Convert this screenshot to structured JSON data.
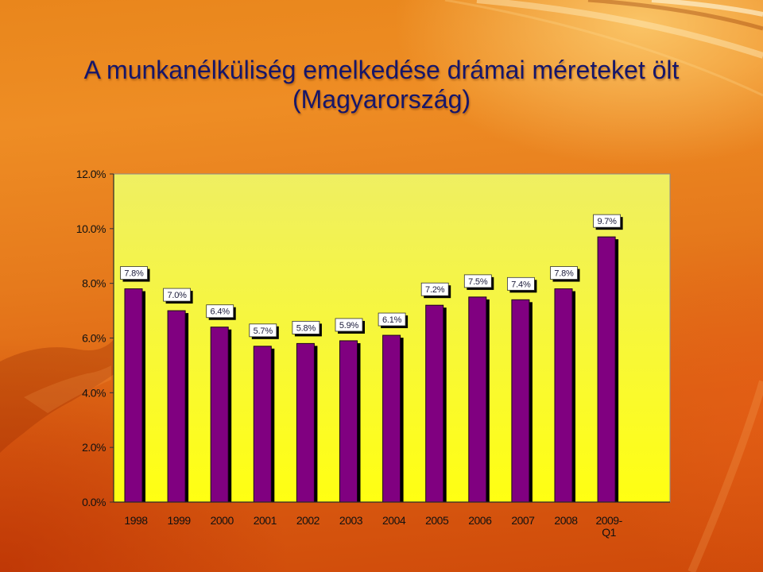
{
  "slide": {
    "title_line1": "A munkanélküliség emelkedése drámai méreteket ölt",
    "title_line2": "(Magyarország)",
    "title_color": "#16166a"
  },
  "chart_data": {
    "type": "bar",
    "categories": [
      "1998",
      "1999",
      "2000",
      "2001",
      "2002",
      "2003",
      "2004",
      "2005",
      "2006",
      "2007",
      "2008",
      "2009-Q1"
    ],
    "values": [
      7.8,
      7.0,
      6.4,
      5.7,
      5.8,
      5.9,
      6.1,
      7.2,
      7.5,
      7.4,
      7.8,
      9.7
    ],
    "data_labels": [
      "7.8%",
      "7.0%",
      "6.4%",
      "5.7%",
      "5.8%",
      "5.9%",
      "6.1%",
      "7.2%",
      "7.5%",
      "7.4%",
      "7.8%",
      "9.7%"
    ],
    "ylim": [
      0,
      12
    ],
    "y_ticks": [
      0,
      2,
      4,
      6,
      8,
      10,
      12
    ],
    "y_tick_labels": [
      "0.0%",
      "2.0%",
      "4.0%",
      "6.0%",
      "8.0%",
      "10.0%",
      "12.0%"
    ],
    "grid": false,
    "legend": false,
    "colors": {
      "bar": "#800080",
      "bar_shadow": "#000000",
      "plot_top": "#efef62",
      "plot_bottom": "#ffff12",
      "label_box": "#ffffff"
    }
  }
}
